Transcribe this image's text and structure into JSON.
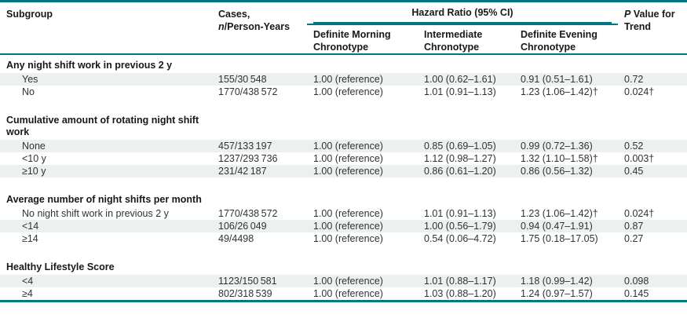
{
  "header": {
    "subgroup": "Subgroup",
    "cases_line1": "Cases,",
    "cases_n": "n",
    "cases_rest": "/Person-Years",
    "spanner": "Hazard Ratio (95% CI)",
    "morning": "Definite Morning Chronotype",
    "intermediate": "Intermediate Chronotype",
    "evening": "Definite Evening Chronotype",
    "p_italic": "P",
    "p_rest": " Value for Trend"
  },
  "colors": {
    "teal": "#00767E",
    "row_shade": "#ECF1ED",
    "text": "#2F3335",
    "header_text": "#17191A"
  },
  "table": {
    "sections": [
      {
        "header": "Any night shift work in previous 2 y",
        "rows": [
          {
            "label": "Yes",
            "cases": "155/30 548",
            "morning": "1.00 (reference)",
            "intermediate": "1.00 (0.62–1.61)",
            "evening": "0.91 (0.51–1.61)",
            "p": "0.72"
          },
          {
            "label": "No",
            "cases": "1770/438 572",
            "morning": "1.00 (reference)",
            "intermediate": "1.01 (0.91–1.13)",
            "evening": "1.23 (1.06–1.42)†",
            "p": "0.024†"
          }
        ]
      },
      {
        "header": "Cumulative amount of rotating night shift work",
        "rows": [
          {
            "label": "None",
            "cases": "457/133 197",
            "morning": "1.00 (reference)",
            "intermediate": "0.85 (0.69–1.05)",
            "evening": "0.99 (0.72–1.36)",
            "p": "0.52"
          },
          {
            "label": "<10 y",
            "cases": "1237/293 736",
            "morning": "1.00 (reference)",
            "intermediate": "1.12 (0.98–1.27)",
            "evening": "1.32 (1.10–1.58)†",
            "p": "0.003†"
          },
          {
            "label": "≥10 y",
            "cases": "231/42 187",
            "morning": "1.00 (reference)",
            "intermediate": "0.86 (0.61–1.20)",
            "evening": "0.86 (0.56–1.32)",
            "p": "0.45"
          }
        ]
      },
      {
        "header": "Average number of night shifts per month",
        "rows": [
          {
            "label": "No night shift work in previous 2 y",
            "cases": "1770/438 572",
            "morning": "1.00 (reference)",
            "intermediate": "1.01 (0.91–1.13)",
            "evening": "1.23 (1.06–1.42)†",
            "p": "0.024†"
          },
          {
            "label": "<14",
            "cases": "106/26 049",
            "morning": "1.00 (reference)",
            "intermediate": "1.00 (0.56–1.79)",
            "evening": "0.94 (0.47–1.91)",
            "p": "0.87"
          },
          {
            "label": "≥14",
            "cases": "49/4498",
            "morning": "1.00 (reference)",
            "intermediate": "0.54 (0.06–4.72)",
            "evening": "1.75 (0.18–17.05)",
            "p": "0.27"
          }
        ]
      },
      {
        "header": "Healthy Lifestyle Score",
        "rows": [
          {
            "label": "<4",
            "cases": "1123/150 581",
            "morning": "1.00 (reference)",
            "intermediate": "1.01 (0.88–1.17)",
            "evening": "1.18 (0.99–1.42)",
            "p": "0.098"
          },
          {
            "label": "≥4",
            "cases": "802/318 539",
            "morning": "1.00 (reference)",
            "intermediate": "1.03 (0.88–1.20)",
            "evening": "1.24 (0.97–1.57)",
            "p": "0.145"
          }
        ]
      }
    ]
  }
}
